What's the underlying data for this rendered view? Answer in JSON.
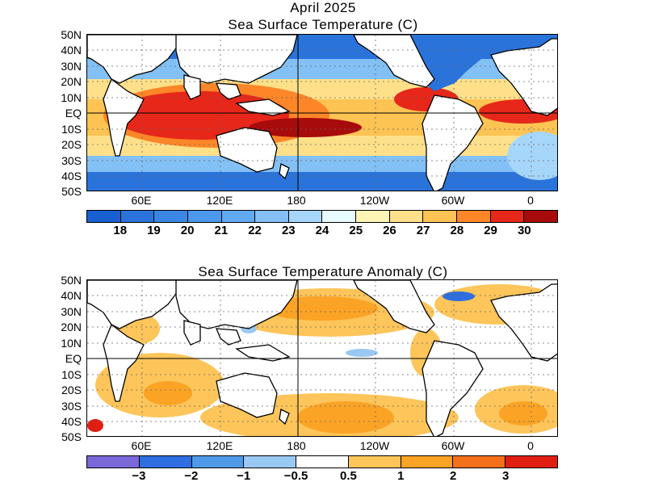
{
  "header": {
    "date": "April 2025",
    "panel1_title": "Sea Surface Temperature (C)",
    "panel2_title": "Sea Surface Temperature Anomaly (C)"
  },
  "axes": {
    "lat_labels": [
      "50N",
      "40N",
      "30N",
      "20N",
      "10N",
      "EQ",
      "10S",
      "20S",
      "30S",
      "40S",
      "50S"
    ],
    "lon_labels": [
      "60E",
      "120E",
      "180",
      "120W",
      "60W",
      "0"
    ]
  },
  "sst_colorbar": {
    "colors": [
      "#1a5fd1",
      "#2a73db",
      "#3a86e4",
      "#4b98ec",
      "#62aaf0",
      "#83c0f5",
      "#a6d6fa",
      "#e8fcff",
      "#fdf4b5",
      "#fee08a",
      "#fdc353",
      "#fc8628",
      "#e6271a",
      "#a80b0b"
    ],
    "labels": [
      "18",
      "19",
      "20",
      "21",
      "22",
      "23",
      "24",
      "25",
      "26",
      "27",
      "28",
      "29",
      "30"
    ]
  },
  "anomaly_colorbar": {
    "colors": [
      "#7a68d8",
      "#2e6ee0",
      "#4f9ae8",
      "#99c9f2",
      "#ffffff",
      "#fdc55a",
      "#fba324",
      "#f6701c",
      "#e01f12"
    ],
    "labels": [
      "−3",
      "−2",
      "−1",
      "−0.5",
      "0.5",
      "1",
      "2",
      "3"
    ]
  }
}
